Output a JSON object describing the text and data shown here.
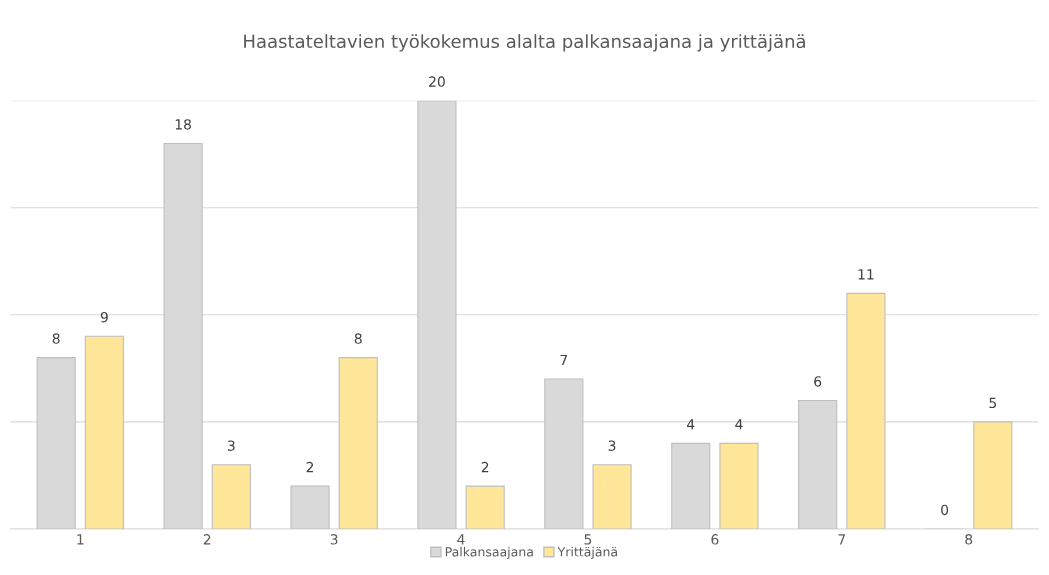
{
  "chart_data": {
    "type": "bar",
    "title": "Haastateltavien työkokemus alalta palkansaajana ja yrittäjänä",
    "categories": [
      "1",
      "2",
      "3",
      "4",
      "5",
      "6",
      "7",
      "8"
    ],
    "series": [
      {
        "name": "Palkansaajana",
        "color": "#d9d9d9",
        "values": [
          8,
          18,
          2,
          20,
          7,
          4,
          6,
          0
        ]
      },
      {
        "name": "Yrittäjänä",
        "color": "#ffe699",
        "values": [
          9,
          3,
          8,
          2,
          3,
          4,
          11,
          5
        ]
      }
    ],
    "ylim": [
      0,
      20
    ],
    "yticks": [
      {
        "value": 0,
        "label": null
      },
      {
        "value": 5,
        "label": null
      },
      {
        "value": 10,
        "label": null
      },
      {
        "value": 15,
        "label": null
      },
      {
        "value": 20,
        "label": null
      }
    ],
    "tick_labels": "x",
    "grid": "y",
    "legend": "bottom",
    "data_labels": true
  }
}
